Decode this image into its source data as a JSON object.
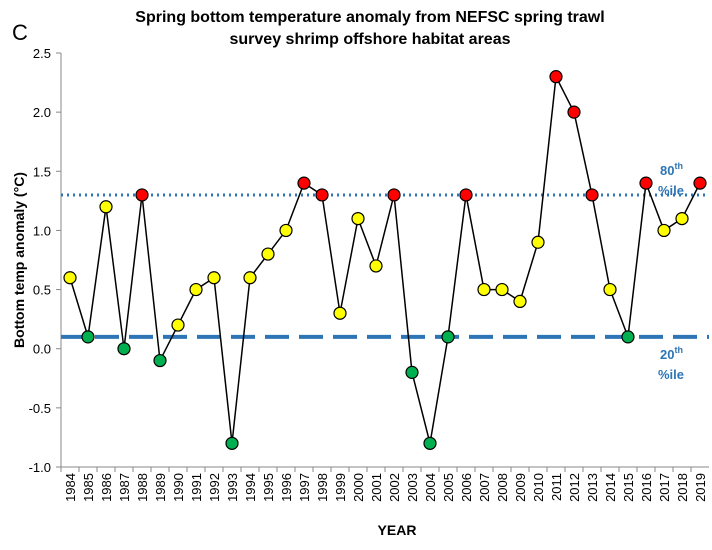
{
  "chart_data": {
    "type": "line",
    "panel_label": "C",
    "title": [
      "Spring bottom temperature anomaly from NEFSC spring trawl",
      "survey shrimp offshore habitat areas"
    ],
    "x_label": "YEAR",
    "y_label": "Bottom temp  anomaly (°C)",
    "categories": [
      "1984",
      "1985",
      "1986",
      "1987",
      "1988",
      "1989",
      "1990",
      "1991",
      "1992",
      "1993",
      "1994",
      "1995",
      "1996",
      "1997",
      "1998",
      "1999",
      "2000",
      "2001",
      "2002",
      "2003",
      "2004",
      "2005",
      "2006",
      "2007",
      "2008",
      "2009",
      "2010",
      "2011",
      "2012",
      "2013",
      "2014",
      "2015",
      "2016",
      "2017",
      "2018",
      "2019"
    ],
    "values": [
      0.6,
      0.1,
      1.2,
      0.0,
      1.3,
      -0.1,
      0.2,
      0.5,
      0.6,
      -0.8,
      0.6,
      0.8,
      1.0,
      1.4,
      1.3,
      0.3,
      1.1,
      0.7,
      1.3,
      -0.2,
      -0.8,
      0.1,
      1.3,
      0.5,
      0.5,
      0.4,
      0.9,
      2.3,
      2.0,
      1.3,
      0.5,
      0.1,
      1.4,
      1.0,
      1.1,
      1.4
    ],
    "point_colors": [
      "#ffff00",
      "#00b050",
      "#ffff00",
      "#00b050",
      "#ff0000",
      "#00b050",
      "#ffff00",
      "#ffff00",
      "#ffff00",
      "#00b050",
      "#ffff00",
      "#ffff00",
      "#ffff00",
      "#ff0000",
      "#ff0000",
      "#ffff00",
      "#ffff00",
      "#ffff00",
      "#ff0000",
      "#00b050",
      "#00b050",
      "#00b050",
      "#ff0000",
      "#ffff00",
      "#ffff00",
      "#ffff00",
      "#ffff00",
      "#ff0000",
      "#ff0000",
      "#ff0000",
      "#ffff00",
      "#00b050",
      "#ff0000",
      "#ffff00",
      "#ffff00",
      "#ff0000"
    ],
    "line_color": "#000000",
    "ylim": [
      -1.0,
      2.5
    ],
    "yticks": [
      {
        "value": -1.0,
        "label": "-1.0"
      },
      -0.5,
      {
        "value": 0.0,
        "label": "0.0"
      },
      0.5,
      {
        "value": 1.0,
        "label": "1.0"
      },
      1.5,
      {
        "value": 2.0,
        "label": "2.0"
      },
      2.5
    ],
    "reference_lines": [
      {
        "value": 1.3,
        "label": "80",
        "suffix": "th",
        "label2": "%ile",
        "style": "dotted",
        "color": "#2e75b6"
      },
      {
        "value": 0.1,
        "label": "20",
        "suffix": "th",
        "label2": "%ile",
        "style": "dashed",
        "color": "#2e75b6"
      }
    ]
  }
}
